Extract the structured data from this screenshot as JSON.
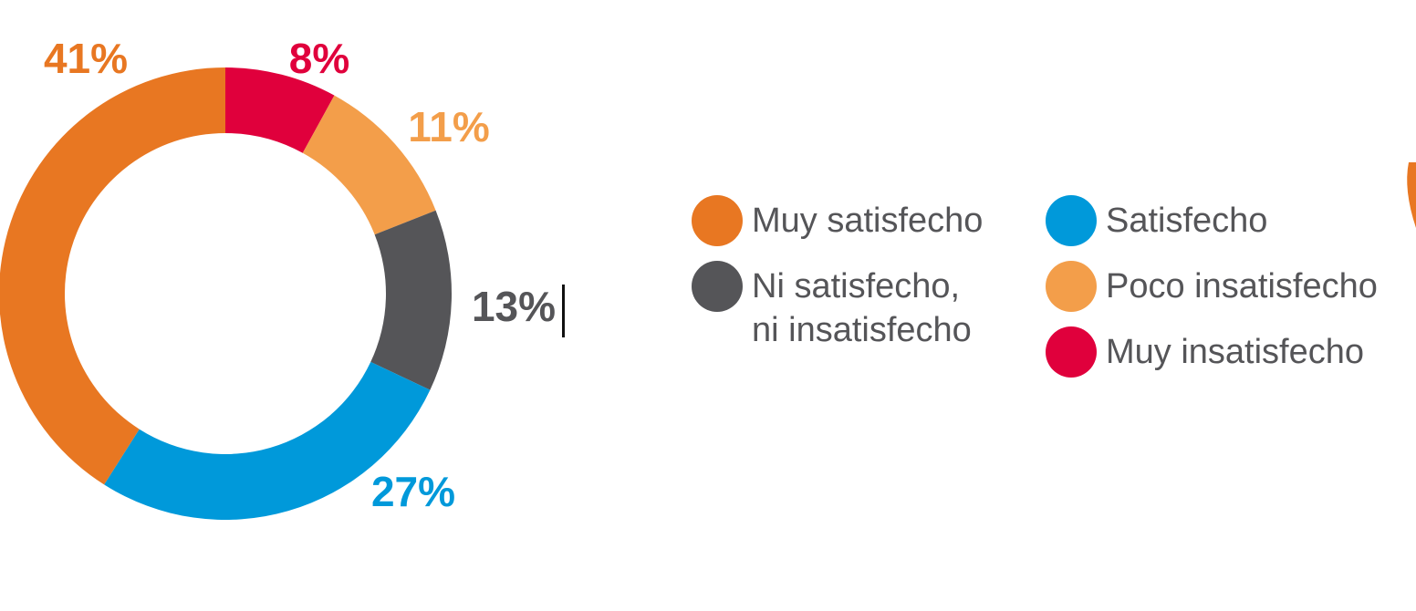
{
  "chart_data": {
    "type": "pie",
    "donut": true,
    "categories": [
      "Muy satisfecho",
      "Satisfecho",
      "Ni satisfecho, ni insatisfecho",
      "Poco insatisfecho",
      "Muy insatisfecho"
    ],
    "values": [
      41,
      27,
      13,
      11,
      8
    ],
    "value_labels": [
      "41%",
      "27%",
      "13%",
      "11%",
      "8%"
    ],
    "colors": [
      "#E87722",
      "#0099DA",
      "#555558",
      "#F39E4A",
      "#E0003C"
    ],
    "legend": [
      {
        "label_line1": "Muy satisfecho",
        "label_line2": "",
        "color": "#E87722"
      },
      {
        "label_line1": "Satisfecho",
        "label_line2": "",
        "color": "#0099DA"
      },
      {
        "label_line1": "Ni satisfecho,",
        "label_line2": "ni insatisfecho",
        "color": "#555558"
      },
      {
        "label_line1": "Poco insatisfecho",
        "label_line2": "",
        "color": "#F39E4A"
      },
      {
        "label_line1": "Muy insatisfecho",
        "label_line2": "",
        "color": "#E0003C"
      }
    ],
    "legend_placement": "right",
    "title": ""
  }
}
